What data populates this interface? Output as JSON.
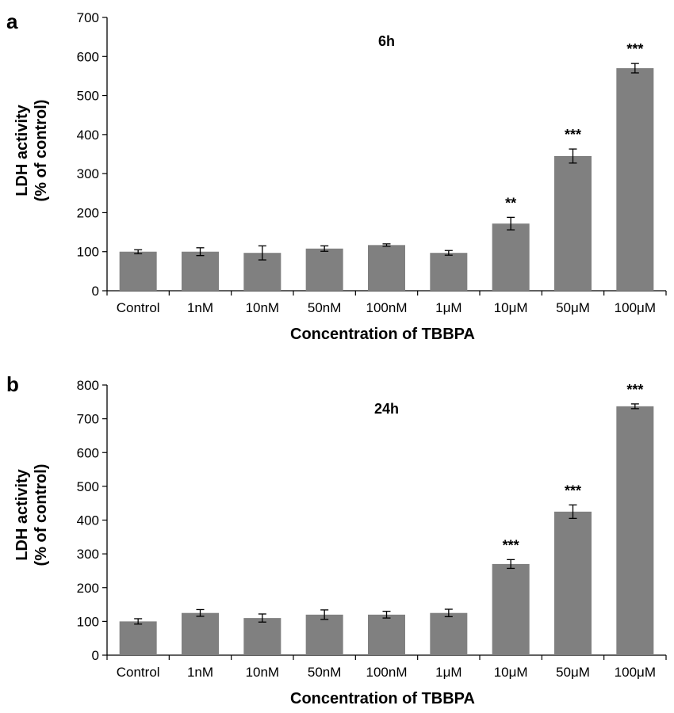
{
  "chart_data": [
    {
      "panel_label": "a",
      "type": "bar",
      "title": "6h",
      "xlabel": "Concentration of TBBPA",
      "ylabel_lines": [
        "LDH activity",
        "(% of control)"
      ],
      "ylim": [
        0,
        700
      ],
      "yticks": [
        0,
        100,
        200,
        300,
        400,
        500,
        600,
        700
      ],
      "categories": [
        "Control",
        "1nM",
        "10nM",
        "50nM",
        "100nM",
        "1μM",
        "10μM",
        "50μM",
        "100μM"
      ],
      "values": [
        100,
        100,
        97,
        108,
        117,
        97,
        172,
        345,
        570
      ],
      "errors": [
        5,
        10,
        18,
        7,
        3,
        6,
        16,
        18,
        12
      ],
      "significance": [
        "",
        "",
        "",
        "",
        "",
        "",
        "**",
        "***",
        "***"
      ],
      "bar_color": "#808080",
      "grid": false
    },
    {
      "panel_label": "b",
      "type": "bar",
      "title": "24h",
      "xlabel": "Concentration of TBBPA",
      "ylabel_lines": [
        "LDH activity",
        "(% of control)"
      ],
      "ylim": [
        0,
        800
      ],
      "yticks": [
        0,
        100,
        200,
        300,
        400,
        500,
        600,
        700,
        800
      ],
      "categories": [
        "Control",
        "1nM",
        "10nM",
        "50nM",
        "100nM",
        "1μM",
        "10μM",
        "50μM",
        "100μM"
      ],
      "values": [
        100,
        125,
        110,
        120,
        120,
        125,
        270,
        425,
        737
      ],
      "errors": [
        8,
        10,
        12,
        14,
        10,
        11,
        13,
        20,
        7
      ],
      "significance": [
        "",
        "",
        "",
        "",
        "",
        "",
        "***",
        "***",
        "***"
      ],
      "bar_color": "#808080",
      "grid": false
    }
  ]
}
